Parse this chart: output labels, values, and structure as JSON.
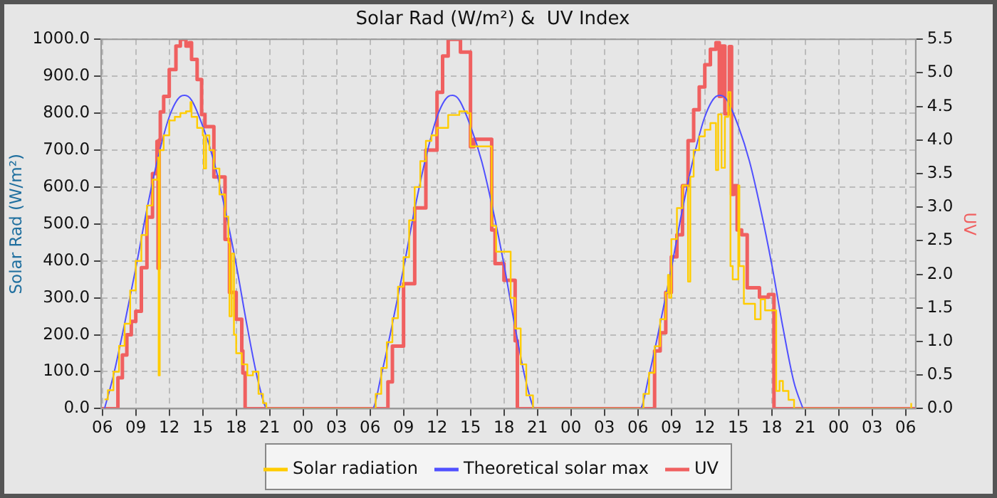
{
  "chart_data": {
    "type": "line",
    "title": "Solar Rad (W/m²) &  UV Index",
    "ylabel": "Solar Rad (W/m²)",
    "y2label": "UV",
    "xlim": [
      5.9,
      78.9
    ],
    "xticks": [
      {
        "value": 6,
        "label": "06"
      },
      {
        "value": 9,
        "label": "09"
      },
      {
        "value": 12,
        "label": "12"
      },
      {
        "value": 15,
        "label": "15"
      },
      {
        "value": 18,
        "label": "18"
      },
      {
        "value": 21,
        "label": "21"
      },
      {
        "value": 24,
        "label": "00"
      },
      {
        "value": 27,
        "label": "03"
      },
      {
        "value": 30,
        "label": "06"
      },
      {
        "value": 33,
        "label": "09"
      },
      {
        "value": 36,
        "label": "12"
      },
      {
        "value": 39,
        "label": "15"
      },
      {
        "value": 42,
        "label": "18"
      },
      {
        "value": 45,
        "label": "21"
      },
      {
        "value": 48,
        "label": "00"
      },
      {
        "value": 51,
        "label": "03"
      },
      {
        "value": 54,
        "label": "06"
      },
      {
        "value": 57,
        "label": "09"
      },
      {
        "value": 60,
        "label": "12"
      },
      {
        "value": 63,
        "label": "15"
      },
      {
        "value": 66,
        "label": "18"
      },
      {
        "value": 69,
        "label": "21"
      },
      {
        "value": 72,
        "label": "00"
      },
      {
        "value": 75,
        "label": "03"
      },
      {
        "value": 78,
        "label": "06"
      }
    ],
    "ylim": [
      0,
      1000
    ],
    "yticks": [
      {
        "value": 0,
        "label": "0.0"
      },
      {
        "value": 100,
        "label": "100.0"
      },
      {
        "value": 200,
        "label": "200.0"
      },
      {
        "value": 300,
        "label": "300.0"
      },
      {
        "value": 400,
        "label": "400.0"
      },
      {
        "value": 500,
        "label": "500.0"
      },
      {
        "value": 600,
        "label": "600.0"
      },
      {
        "value": 700,
        "label": "700.0"
      },
      {
        "value": 800,
        "label": "800.0"
      },
      {
        "value": 900,
        "label": "900.0"
      },
      {
        "value": 1000,
        "label": "1000.0"
      }
    ],
    "y2lim": [
      0,
      5.5
    ],
    "y2ticks": [
      {
        "value": 0,
        "label": "0.0"
      },
      {
        "value": 0.5,
        "label": "0.5"
      },
      {
        "value": 1,
        "label": "1.0"
      },
      {
        "value": 1.5,
        "label": "1.5"
      },
      {
        "value": 2,
        "label": "2.0"
      },
      {
        "value": 2.5,
        "label": "2.5"
      },
      {
        "value": 3,
        "label": "3.0"
      },
      {
        "value": 3.5,
        "label": "3.5"
      },
      {
        "value": 4,
        "label": "4.0"
      },
      {
        "value": 4.5,
        "label": "4.5"
      },
      {
        "value": 5,
        "label": "5.0"
      },
      {
        "value": 5.5,
        "label": "5.5"
      }
    ],
    "grid": true,
    "legend": "bottom",
    "marker": "none",
    "series": [
      {
        "name": "Solar radiation",
        "type": "step",
        "color": "#ffcc00",
        "x": [
          6.2,
          6.5,
          7,
          7.5,
          8,
          8.5,
          9,
          9.5,
          10,
          10.5,
          11,
          11.05,
          11.15,
          11.5,
          12,
          12.5,
          13,
          13.5,
          13.9,
          14,
          14.5,
          15,
          15.1,
          15.3,
          15.6,
          16,
          16.5,
          17,
          17.3,
          17.4,
          17.6,
          17.8,
          18,
          18.5,
          19,
          19.5,
          20,
          20.4,
          20.7,
          30,
          30.5,
          31,
          31.5,
          32,
          32.5,
          33,
          33.5,
          34,
          34.5,
          35,
          35.5,
          36,
          37,
          38,
          38.7,
          39,
          40.9,
          41.3,
          42.6,
          43,
          43.5,
          44,
          44.6,
          54,
          54.5,
          55,
          55.5,
          56,
          56.5,
          56.7,
          56.8,
          57,
          57.5,
          58,
          58.5,
          58.7,
          59,
          59.5,
          60,
          60.5,
          61,
          61.2,
          61.5,
          61.8,
          62.1,
          62.3,
          62.5,
          63,
          63.1,
          63.5,
          64.5,
          65,
          65.4,
          66.4,
          66.7,
          67,
          67.5,
          68,
          78,
          78.5
        ],
        "values": [
          25,
          50,
          100,
          170,
          230,
          320,
          400,
          470,
          550,
          620,
          680,
          90,
          700,
          740,
          780,
          790,
          800,
          805,
          830,
          790,
          760,
          740,
          650,
          740,
          700,
          650,
          580,
          520,
          450,
          250,
          420,
          200,
          150,
          120,
          90,
          100,
          40,
          15,
          0,
          0,
          40,
          110,
          180,
          245,
          330,
          410,
          510,
          600,
          670,
          725,
          740,
          760,
          795,
          805,
          800,
          710,
          495,
          425,
          300,
          217,
          120,
          36,
          0,
          0,
          40,
          97,
          169,
          242,
          314,
          362,
          300,
          459,
          543,
          604,
          344,
          628,
          700,
          737,
          755,
          773,
          646,
          797,
          652,
          790,
          857,
          386,
          350,
          604,
          386,
          284,
          242,
          296,
          266,
          48,
          75,
          48,
          24,
          0,
          0,
          15
        ]
      },
      {
        "name": "Theoretical solar max",
        "type": "line",
        "color": "#5050ff",
        "x": [
          6.2,
          7,
          8,
          9,
          10,
          11,
          12,
          13,
          13.4,
          14,
          15,
          16,
          17,
          18,
          19,
          20,
          20.8,
          30.2,
          31,
          32,
          33,
          34,
          35,
          36,
          37,
          37.4,
          38,
          39,
          40,
          41,
          42,
          43,
          44,
          44.8,
          54.2,
          55,
          56,
          57,
          58,
          59,
          60,
          61,
          61.4,
          62,
          63,
          64,
          65,
          66,
          67,
          68,
          68.8
        ],
        "values": [
          0,
          90,
          230,
          380,
          540,
          680,
          790,
          845,
          848,
          835,
          765,
          670,
          540,
          390,
          220,
          70,
          0,
          0,
          90,
          230,
          380,
          540,
          680,
          790,
          845,
          848,
          835,
          765,
          670,
          540,
          390,
          220,
          70,
          0,
          0,
          90,
          230,
          380,
          540,
          680,
          790,
          845,
          848,
          835,
          765,
          670,
          540,
          390,
          220,
          70,
          0
        ]
      },
      {
        "name": "UV",
        "type": "step",
        "axis": "y2",
        "color": "#f06060",
        "x": [
          5.9,
          7.4,
          7.8,
          8.2,
          8.6,
          9,
          9.5,
          10,
          10.5,
          10.9,
          11,
          11.1,
          11.2,
          11.5,
          12,
          12.6,
          13,
          13.5,
          13.8,
          14,
          14.5,
          14.9,
          15.2,
          16,
          17,
          17.4,
          18,
          18.5,
          18.6,
          18.8,
          31.6,
          32,
          33,
          34,
          35,
          36,
          36.5,
          37,
          38.1,
          39,
          39.3,
          40.9,
          41.2,
          42,
          43,
          43.2,
          55.5,
          56,
          56.5,
          57,
          57.5,
          58,
          58.5,
          59,
          59.5,
          60,
          60.5,
          61,
          61.3,
          61.5,
          61.8,
          62.2,
          62.4,
          62.6,
          62.9,
          63.3,
          63.8,
          64.9,
          65.7,
          66.2,
          78.9
        ],
        "values": [
          0,
          0.46,
          0.8,
          1.1,
          1.3,
          1.45,
          2.1,
          2.85,
          3.5,
          3.98,
          2.09,
          4,
          4.42,
          4.65,
          5.05,
          5.4,
          5.5,
          5.4,
          5.45,
          5.2,
          4.9,
          4.38,
          4.2,
          3.45,
          2.52,
          1.73,
          1.33,
          0.86,
          0.53,
          0,
          0.4,
          0.93,
          1.86,
          2.99,
          3.85,
          4.71,
          5.25,
          5.5,
          5.31,
          3.9,
          4.01,
          2.66,
          2.16,
          1.91,
          1.01,
          0,
          0.86,
          1.13,
          1.73,
          2.26,
          2.59,
          3.32,
          3.99,
          4.45,
          4.79,
          5.12,
          5.35,
          5.45,
          4.65,
          5.4,
          4.39,
          5.39,
          3.19,
          3.32,
          2.66,
          2.59,
          1.8,
          1.66,
          1.7,
          0,
          0
        ]
      }
    ]
  }
}
